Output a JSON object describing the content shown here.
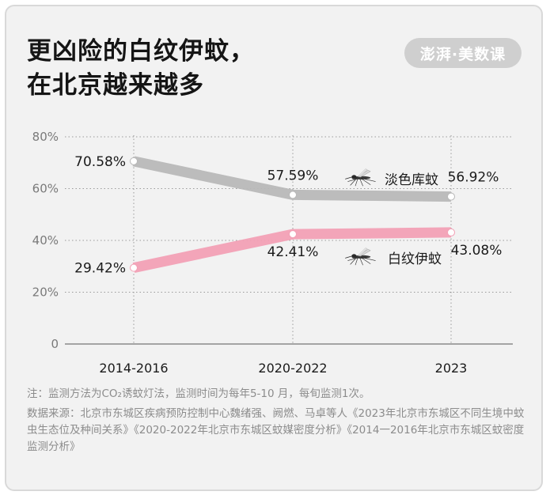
{
  "title": {
    "line1": "更凶险的白纹伊蚊，",
    "line2": "在北京越来越多"
  },
  "logo": {
    "text": "澎湃·美数课"
  },
  "chart_data": {
    "type": "line",
    "categories": [
      "2014-2016",
      "2020-2022",
      "2023"
    ],
    "yticks": [
      "0",
      "20%",
      "40%",
      "60%",
      "80%"
    ],
    "ylim": [
      0,
      80
    ],
    "grid": true,
    "series": [
      {
        "name": "淡色库蚊",
        "values": [
          70.58,
          57.59,
          56.92
        ],
        "labels": [
          "70.58%",
          "57.59%",
          "56.92%"
        ],
        "color": "#b8b8b8"
      },
      {
        "name": "白纹伊蚊",
        "values": [
          29.42,
          42.41,
          43.08
        ],
        "labels": [
          "29.42%",
          "42.41%",
          "43.08%"
        ],
        "color": "#f2a0b5"
      }
    ]
  },
  "notes": {
    "note": "注：监测方法为CO₂诱蚊灯法，监测时间为每年5-10 月，每旬监测1次。",
    "source": "数据来源：北京市东城区疾病预防控制中心魏绪强、阙燃、马卓等人《2023年北京市东城区不同生境中蚊虫生态位及种间关系》《2020-2022年北京市东城区蚊媒密度分析》《2014一2016年北京市东城区蚊密度监测分析》"
  }
}
